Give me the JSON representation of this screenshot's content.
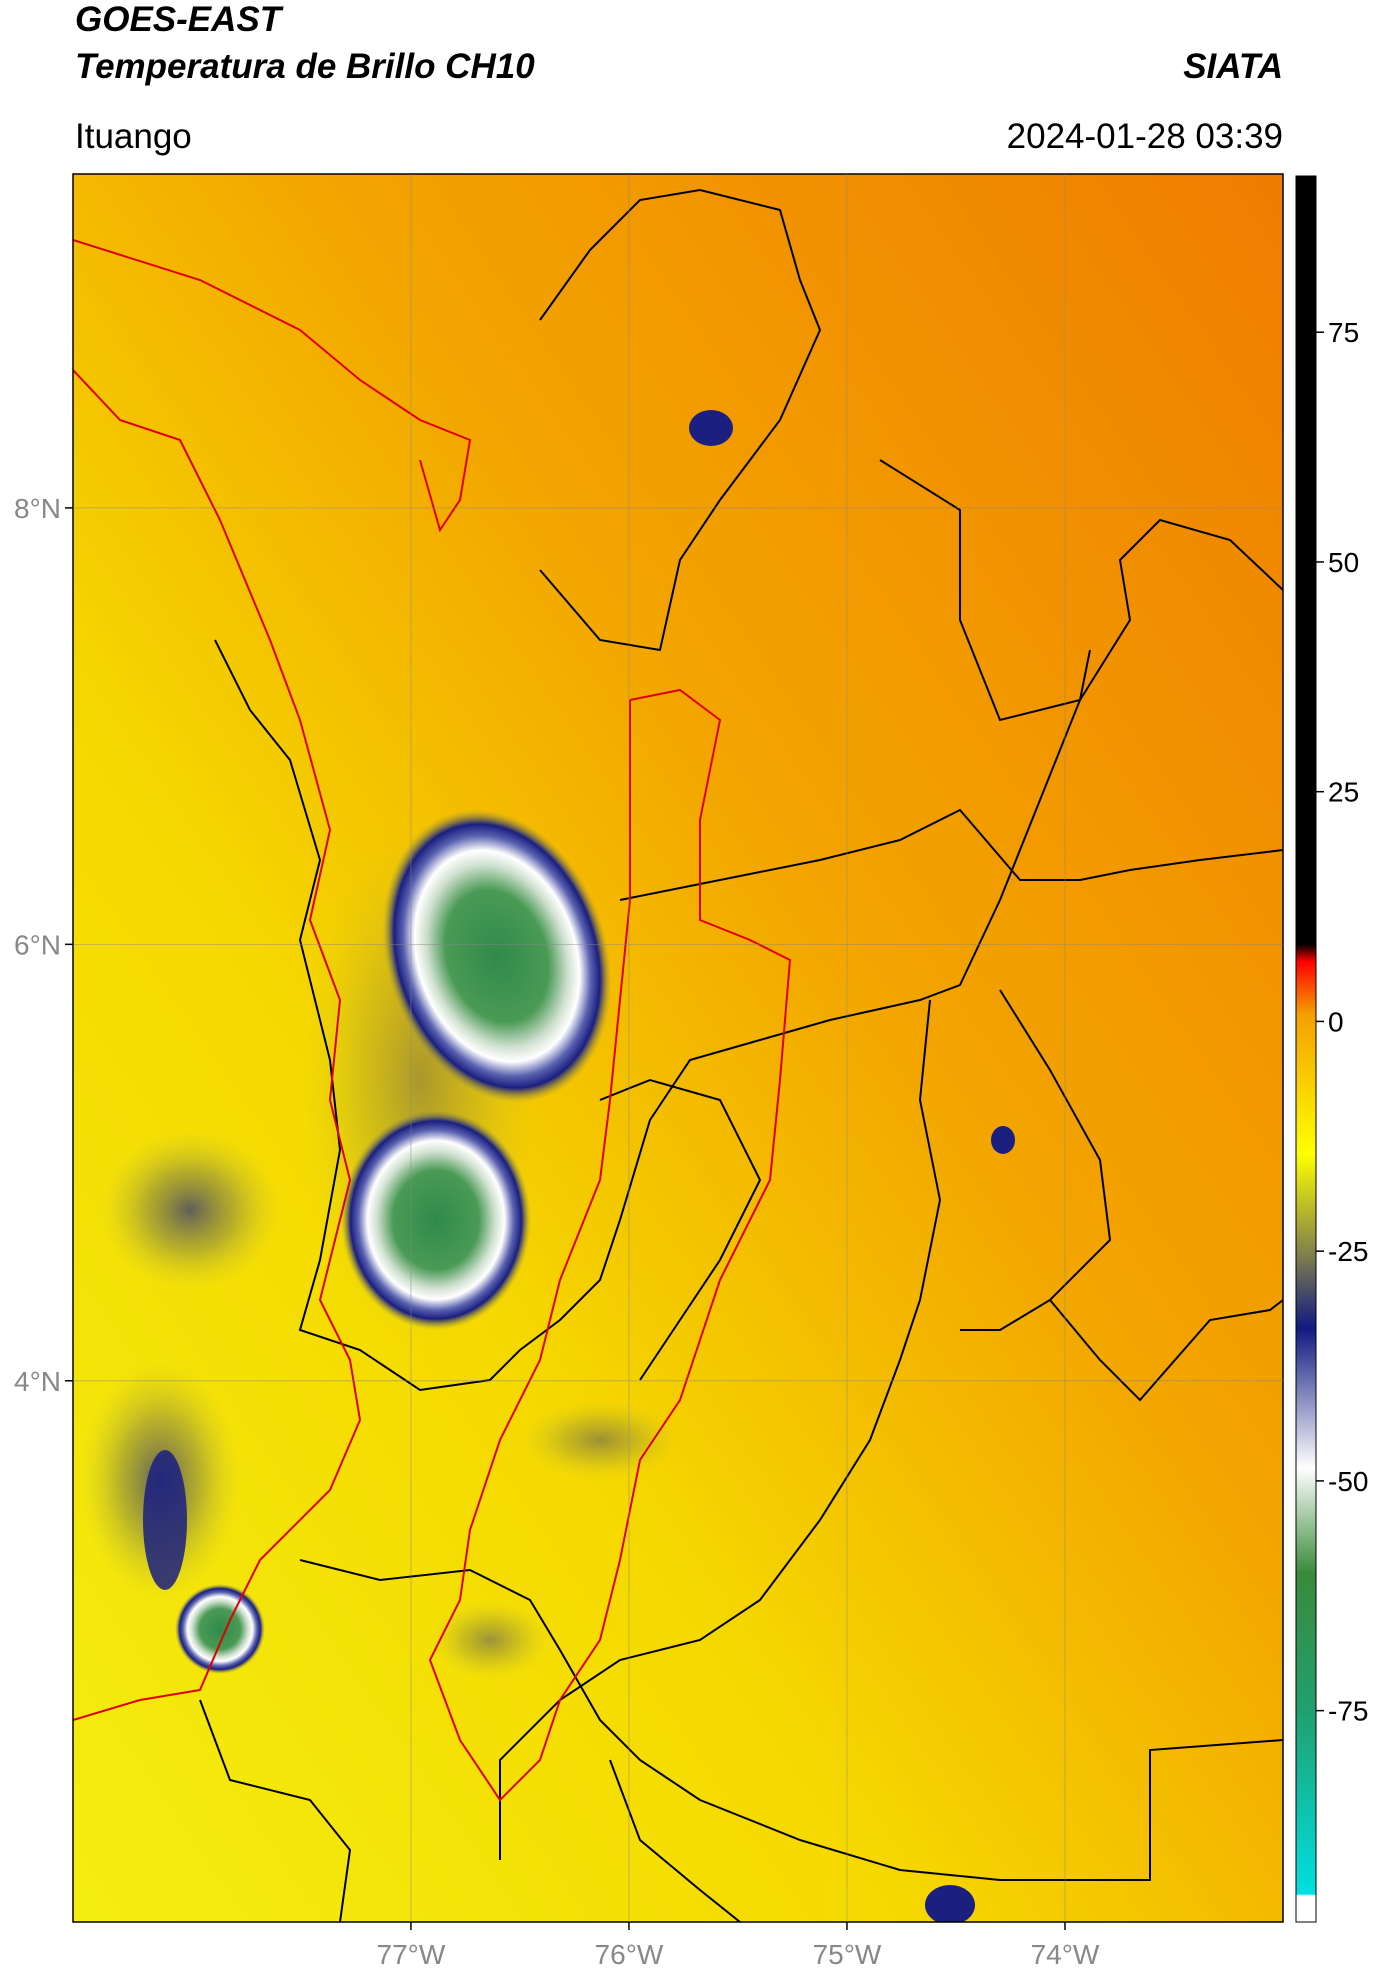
{
  "header": {
    "satellite": "GOES-EAST",
    "product": "Temperatura de Brillo CH10",
    "agency": "SIATA",
    "region": "Ituango",
    "datetime": "2024-01-28 03:39"
  },
  "map": {
    "lonlim": [
      -78.55,
      -73.0
    ],
    "latlim": [
      1.52,
      9.53
    ],
    "lonticks": [
      {
        "value": -77,
        "label": "77°W"
      },
      {
        "value": -76,
        "label": "76°W"
      },
      {
        "value": -75,
        "label": "75°W"
      },
      {
        "value": -74,
        "label": "74°W"
      }
    ],
    "latticks": [
      {
        "value": 8,
        "label": "8°N"
      },
      {
        "value": 6,
        "label": "6°N"
      },
      {
        "value": 4,
        "label": "4°N"
      }
    ],
    "grid": true
  },
  "colorbar": {
    "lim": [
      -98,
      92
    ],
    "ticks": [
      75,
      50,
      25,
      0,
      -25,
      -50,
      -75
    ]
  }
}
